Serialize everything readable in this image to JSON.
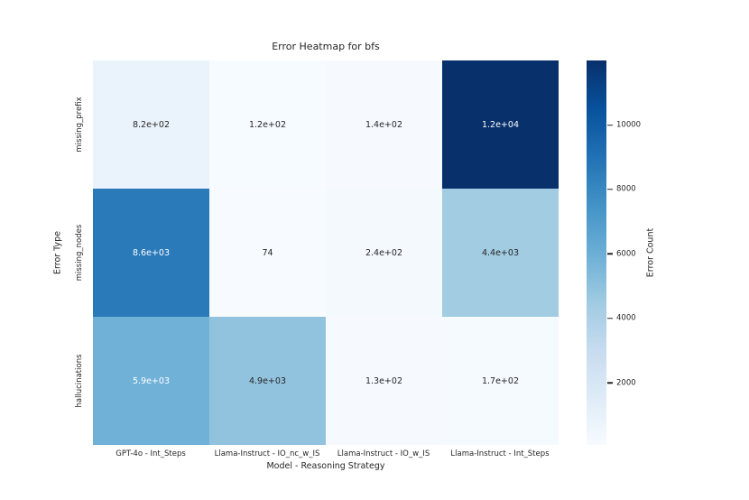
{
  "chart_data": {
    "type": "heatmap",
    "title": "Error Heatmap for bfs",
    "xlabel": "Model - Reasoning Strategy",
    "ylabel": "Error Type",
    "columns": [
      "GPT-4o - Int_Steps",
      "Llama-Instruct - IO_nc_w_IS",
      "Llama-Instruct - IO_w_IS",
      "Llama-Instruct - Int_Steps"
    ],
    "rows": [
      "missing_prefix",
      "missing_nodes",
      "hallucinations"
    ],
    "values": [
      [
        820,
        120,
        140,
        12000
      ],
      [
        8600,
        74,
        240,
        4400
      ],
      [
        5900,
        4900,
        130,
        170
      ]
    ],
    "cell_labels": [
      [
        "8.2e+02",
        "1.2e+02",
        "1.4e+02",
        "1.2e+04"
      ],
      [
        "8.6e+03",
        "74",
        "2.4e+02",
        "4.4e+03"
      ],
      [
        "5.9e+03",
        "4.9e+03",
        "1.3e+02",
        "1.7e+02"
      ]
    ],
    "vmin": 74,
    "vmax": 12000,
    "colormap": {
      "name": "Blues",
      "stops": [
        "#f7fbff",
        "#deebf7",
        "#c6dbef",
        "#9ecae1",
        "#6baed6",
        "#4292c6",
        "#2171b5",
        "#08519c",
        "#08306b"
      ]
    },
    "colorbar": {
      "label": "Error Count",
      "ticks": [
        2000,
        4000,
        6000,
        8000,
        10000
      ]
    },
    "annotation_text_dark": "#262626",
    "annotation_text_light": "#ffffff",
    "legend_position": "right-colorbar",
    "grid": false
  }
}
